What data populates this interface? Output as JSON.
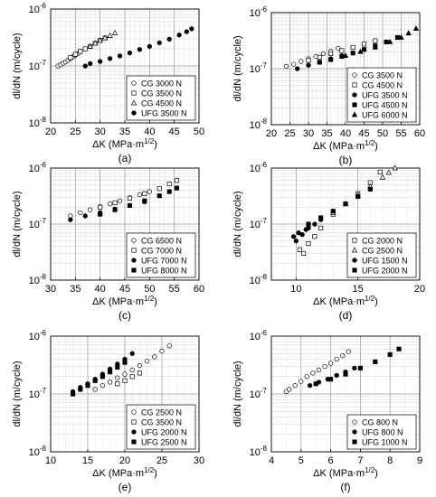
{
  "figure": {
    "panel_labels": [
      "(a)",
      "(b)",
      "(c)",
      "(d)",
      "(e)",
      "(f)"
    ]
  },
  "chart_data": [
    {
      "type": "scatter",
      "panel_label": "(a)",
      "log_y": true,
      "grid": true,
      "legend_position": "bottom-right",
      "xlabel": "ΔK (MPa·m",
      "xlabel_sup": "1/2",
      "xlabel_end": ")",
      "ylabel": "dl/dN (m/cycle)",
      "xlim": [
        20,
        50
      ],
      "xticks": [
        20,
        25,
        30,
        35,
        40,
        45,
        50
      ],
      "xtick_labels": [
        "20",
        "25",
        "30",
        "35",
        "40",
        "45",
        "50"
      ],
      "ylim": [
        1e-08,
        1e-06
      ],
      "ytick_values": [
        1e-08,
        1e-07,
        1e-06
      ],
      "ytick_exponents": [
        "-8",
        "-7",
        "-6"
      ],
      "series": [
        {
          "name": "CG 3000 N",
          "marker": "circle-open",
          "x": [
            21.5,
            22.0,
            22.5,
            23.0,
            23.5,
            24.0,
            24.5,
            25.0,
            25.5,
            26.0
          ],
          "y": [
            1e-07,
            1.05e-07,
            1.12e-07,
            1.18e-07,
            1.25e-07,
            1.35e-07,
            1.45e-07,
            1.55e-07,
            1.65e-07,
            1.8e-07
          ]
        },
        {
          "name": "CG 3500 N",
          "marker": "square-open",
          "x": [
            24.0,
            25.0,
            26.0,
            27.0,
            28.0,
            29.0,
            30.0,
            31.0
          ],
          "y": [
            1.4e-07,
            1.6e-07,
            1.8e-07,
            2e-07,
            2.2e-07,
            2.5e-07,
            2.8e-07,
            3.1e-07
          ]
        },
        {
          "name": "CG 4500 N",
          "marker": "triangle-open",
          "x": [
            28.0,
            29.0,
            30.0,
            31.0,
            32.0,
            33.0
          ],
          "y": [
            2.2e-07,
            2.5e-07,
            2.8e-07,
            3.1e-07,
            3.4e-07,
            3.8e-07
          ]
        },
        {
          "name": "UFG 3500 N",
          "marker": "circle-filled",
          "x": [
            27.0,
            28.0,
            30.0,
            32.0,
            34.0,
            36.0,
            38.0,
            40.0,
            42.0,
            44.0,
            46.0,
            47.5,
            48.5
          ],
          "y": [
            1e-07,
            1.1e-07,
            1.2e-07,
            1.35e-07,
            1.5e-07,
            1.7e-07,
            1.95e-07,
            2.2e-07,
            2.55e-07,
            2.95e-07,
            3.5e-07,
            4e-07,
            4.5e-07
          ]
        }
      ]
    },
    {
      "type": "scatter",
      "panel_label": "(b)",
      "log_y": true,
      "grid": true,
      "legend_position": "bottom-right",
      "xlabel": "ΔK (MPa·m",
      "xlabel_sup": "1/2",
      "xlabel_end": ")",
      "ylabel": "dl/dN (m/cycle)",
      "xlim": [
        20,
        60
      ],
      "xticks": [
        20,
        25,
        30,
        35,
        40,
        45,
        50,
        55,
        60
      ],
      "xtick_labels": [
        "20",
        "25",
        "30",
        "35",
        "40",
        "45",
        "50",
        "55",
        "60"
      ],
      "ylim": [
        1e-08,
        1e-06
      ],
      "ytick_values": [
        1e-08,
        1e-07,
        1e-06
      ],
      "ytick_exponents": [
        "-8",
        "-7",
        "-6"
      ],
      "series": [
        {
          "name": "CG 3500 N",
          "marker": "circle-open",
          "x": [
            24.0,
            26.0,
            28.0,
            30.0,
            32.0,
            34.0,
            36.0,
            38.0
          ],
          "y": [
            1.1e-07,
            1.2e-07,
            1.35e-07,
            1.5e-07,
            1.65e-07,
            1.85e-07,
            2.05e-07,
            2.3e-07
          ]
        },
        {
          "name": "CG 4500 N",
          "marker": "square-open",
          "x": [
            30.0,
            33.0,
            36.0,
            39.0,
            42.0,
            45.0,
            48.0
          ],
          "y": [
            1.4e-07,
            1.6e-07,
            1.85e-07,
            2.1e-07,
            2.4e-07,
            2.75e-07,
            3.15e-07
          ]
        },
        {
          "name": "UFG 3500 N",
          "marker": "circle-filled",
          "x": [
            27.0,
            30.0,
            33.0,
            36.0,
            39.0
          ],
          "y": [
            1e-07,
            1.15e-07,
            1.3e-07,
            1.5e-07,
            1.7e-07
          ]
        },
        {
          "name": "UFG 4500 N",
          "marker": "square-filled",
          "x": [
            33.0,
            36.0,
            39.0,
            42.0,
            45.0,
            48.0,
            51.0,
            54.0
          ],
          "y": [
            1.3e-07,
            1.45e-07,
            1.65e-07,
            1.9e-07,
            2.2e-07,
            2.55e-07,
            3e-07,
            3.6e-07
          ]
        },
        {
          "name": "UFG 6000 N",
          "marker": "triangle-filled",
          "x": [
            40.0,
            44.0,
            48.0,
            52.0,
            55.0,
            57.0,
            59.0
          ],
          "y": [
            1.7e-07,
            2e-07,
            2.4e-07,
            3e-07,
            3.6e-07,
            4.3e-07,
            5.2e-07
          ]
        }
      ]
    },
    {
      "type": "scatter",
      "panel_label": "(c)",
      "log_y": true,
      "grid": true,
      "legend_position": "bottom-right",
      "xlabel": "ΔK (MPa·m",
      "xlabel_sup": "1/2",
      "xlabel_end": ")",
      "ylabel": "dl/dN (m/cycle)",
      "xlim": [
        30,
        60
      ],
      "xticks": [
        30,
        35,
        40,
        45,
        50,
        55,
        60
      ],
      "xtick_labels": [
        "30",
        "35",
        "40",
        "45",
        "50",
        "55",
        "60"
      ],
      "ylim": [
        1e-08,
        1e-06
      ],
      "ytick_values": [
        1e-08,
        1e-07,
        1e-06
      ],
      "ytick_exponents": [
        "-8",
        "-7",
        "-6"
      ],
      "series": [
        {
          "name": "CG 6500 N",
          "marker": "circle-open",
          "x": [
            34.0,
            36.0,
            38.0,
            40.0,
            42.0,
            44.0,
            46.0,
            48.0,
            50.0
          ],
          "y": [
            1.4e-07,
            1.6e-07,
            1.8e-07,
            2.05e-07,
            2.3e-07,
            2.6e-07,
            2.95e-07,
            3.35e-07,
            3.8e-07
          ]
        },
        {
          "name": "CG 7000 N",
          "marker": "square-open",
          "x": [
            40.0,
            43.0,
            46.0,
            49.0,
            52.0,
            54.0,
            55.5
          ],
          "y": [
            2e-07,
            2.4e-07,
            2.9e-07,
            3.5e-07,
            4.3e-07,
            5.2e-07,
            6e-07
          ]
        },
        {
          "name": "UFG 7000 N",
          "marker": "circle-filled",
          "x": [
            34.0,
            37.0,
            40.0,
            43.0,
            46.0,
            49.0
          ],
          "y": [
            1.2e-07,
            1.4e-07,
            1.6e-07,
            1.85e-07,
            2.15e-07,
            2.5e-07
          ]
        },
        {
          "name": "UFG 8000 N",
          "marker": "square-filled",
          "x": [
            40.0,
            43.0,
            46.0,
            49.0,
            52.0,
            54.0,
            55.5
          ],
          "y": [
            1.5e-07,
            1.8e-07,
            2.15e-07,
            2.6e-07,
            3.2e-07,
            3.8e-07,
            4.4e-07
          ]
        }
      ]
    },
    {
      "type": "scatter",
      "panel_label": "(d)",
      "log_y": true,
      "grid": true,
      "legend_position": "bottom-right",
      "xlabel": "ΔK (MPa·m",
      "xlabel_sup": "1/2",
      "xlabel_end": ")",
      "ylabel": "dl/dN (m/cycle)",
      "xlim": [
        8,
        20
      ],
      "xticks": [
        10,
        15,
        20
      ],
      "xtick_labels": [
        "10",
        "15",
        "20"
      ],
      "ylim": [
        1e-08,
        1e-06
      ],
      "ytick_values": [
        1e-08,
        1e-07,
        1e-06
      ],
      "ytick_exponents": [
        "-8",
        "-7",
        "-6"
      ],
      "series": [
        {
          "name": "CG 2000 N",
          "marker": "square-open",
          "x": [
            10.3,
            10.6,
            11.0,
            11.5,
            12.0,
            13.0,
            14.0,
            15.0,
            16.0,
            16.8
          ],
          "y": [
            3.5e-08,
            3e-08,
            4.5e-08,
            6e-08,
            8.5e-08,
            1.5e-07,
            2.3e-07,
            3.5e-07,
            5.5e-07,
            8.5e-07
          ]
        },
        {
          "name": "CG 2500 N",
          "marker": "triangle-open",
          "x": [
            13.0,
            14.0,
            15.0,
            16.0,
            17.0,
            17.5,
            18.0
          ],
          "y": [
            1.6e-07,
            2.3e-07,
            3.3e-07,
            4.7e-07,
            6.8e-07,
            8.3e-07,
            1e-06
          ]
        },
        {
          "name": "UFG 1500 N",
          "marker": "circle-filled",
          "x": [
            9.8,
            10.0,
            10.2,
            10.5,
            10.8,
            11.0,
            11.5,
            12.0
          ],
          "y": [
            6e-08,
            5e-08,
            7e-08,
            6.5e-08,
            8e-08,
            8.5e-08,
            1e-07,
            1.2e-07
          ]
        },
        {
          "name": "UFG 2000 N",
          "marker": "square-filled",
          "x": [
            11.0,
            12.0,
            13.0,
            14.0,
            15.0,
            16.0
          ],
          "y": [
            1e-07,
            1.3e-07,
            1.7e-07,
            2.3e-07,
            3.1e-07,
            4.2e-07
          ]
        }
      ]
    },
    {
      "type": "scatter",
      "panel_label": "(e)",
      "log_y": true,
      "grid": true,
      "legend_position": "bottom-right",
      "xlabel": "ΔK (MPa·m",
      "xlabel_sup": "1/2",
      "xlabel_end": ")",
      "ylabel": "dl/dN (m/cycle)",
      "xlim": [
        10,
        30
      ],
      "xticks": [
        10,
        15,
        20,
        25,
        30
      ],
      "xtick_labels": [
        "10",
        "15",
        "20",
        "25",
        "30"
      ],
      "ylim": [
        1e-08,
        1e-06
      ],
      "ytick_values": [
        1e-08,
        1e-07,
        1e-06
      ],
      "ytick_exponents": [
        "-8",
        "-7",
        "-6"
      ],
      "series": [
        {
          "name": "CG 2500 N",
          "marker": "circle-open",
          "x": [
            16.0,
            17.0,
            18.0,
            19.0,
            20.0,
            21.0,
            22.0,
            23.0,
            24.0,
            25.0,
            26.0
          ],
          "y": [
            1.2e-07,
            1.4e-07,
            1.6e-07,
            1.9e-07,
            2.2e-07,
            2.6e-07,
            3.1e-07,
            3.7e-07,
            4.4e-07,
            5.5e-07,
            6.8e-07
          ]
        },
        {
          "name": "CG 3500 N",
          "marker": "square-open",
          "x": [
            19.0,
            20.0,
            21.0,
            22.0
          ],
          "y": [
            1.5e-07,
            1.7e-07,
            2e-07,
            2.3e-07
          ]
        },
        {
          "name": "UFG 2000 N",
          "marker": "circle-filled",
          "x": [
            13.0,
            14.0,
            15.0,
            16.0,
            17.0,
            18.0,
            19.0,
            20.0,
            21.0
          ],
          "y": [
            1.1e-07,
            1.3e-07,
            1.5e-07,
            1.8e-07,
            2.2e-07,
            2.7e-07,
            3.3e-07,
            4e-07,
            5e-07
          ]
        },
        {
          "name": "UFG 2500 N",
          "marker": "square-filled",
          "x": [
            13.0,
            14.0,
            15.0,
            16.0,
            17.0,
            18.0,
            19.0,
            20.0
          ],
          "y": [
            1e-07,
            1.2e-07,
            1.4e-07,
            1.7e-07,
            2e-07,
            2.4e-07,
            2.9e-07,
            3.5e-07
          ]
        }
      ]
    },
    {
      "type": "scatter",
      "panel_label": "(f)",
      "log_y": true,
      "grid": true,
      "legend_position": "bottom-right",
      "xlabel": "ΔK (MPa·m",
      "xlabel_sup": "1/2",
      "xlabel_end": ")",
      "ylabel": "dl/dN (m/cycle)",
      "xlim": [
        4,
        9
      ],
      "xticks": [
        4,
        5,
        6,
        7,
        8,
        9
      ],
      "xtick_labels": [
        "4",
        "5",
        "6",
        "7",
        "8",
        "9"
      ],
      "ylim": [
        1e-08,
        1e-06
      ],
      "ytick_values": [
        1e-08,
        1e-07,
        1e-06
      ],
      "ytick_exponents": [
        "-8",
        "-7",
        "-6"
      ],
      "series": [
        {
          "name": "CG 800 N",
          "marker": "circle-open",
          "x": [
            4.5,
            4.6,
            4.8,
            5.0,
            5.2,
            5.4,
            5.6,
            5.8,
            6.0,
            6.2,
            6.4,
            6.6
          ],
          "y": [
            1.1e-07,
            1.2e-07,
            1.4e-07,
            1.65e-07,
            2e-07,
            2.3e-07,
            2.6e-07,
            3e-07,
            3.4e-07,
            4e-07,
            4.6e-07,
            5.4e-07
          ]
        },
        {
          "name": "UFG 800 N",
          "marker": "circle-filled",
          "x": [
            5.3,
            5.6,
            5.9,
            6.2,
            6.5,
            6.8
          ],
          "y": [
            1.4e-07,
            1.6e-07,
            1.8e-07,
            2.1e-07,
            2.4e-07,
            2.8e-07
          ]
        },
        {
          "name": "UFG 1000 N",
          "marker": "square-filled",
          "x": [
            5.5,
            6.0,
            6.5,
            7.0,
            7.5,
            8.0,
            8.3
          ],
          "y": [
            1.5e-07,
            1.8e-07,
            2.2e-07,
            2.8e-07,
            3.6e-07,
            4.8e-07,
            6e-07
          ]
        }
      ]
    }
  ]
}
